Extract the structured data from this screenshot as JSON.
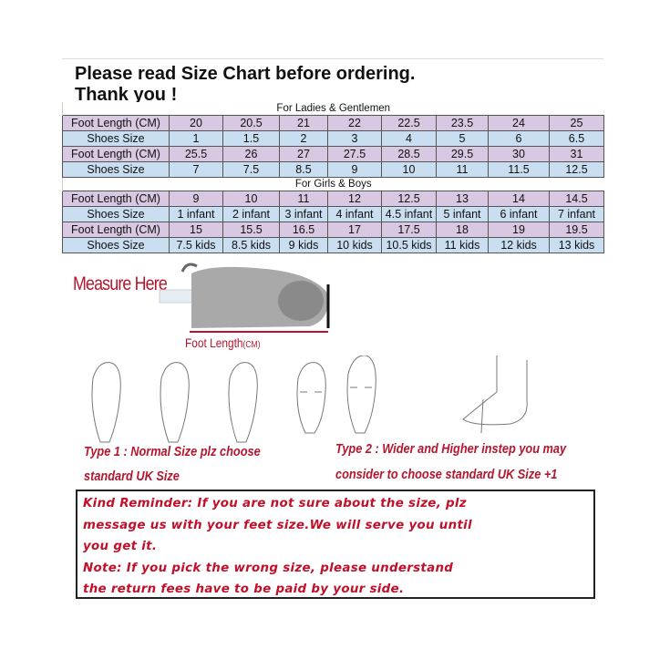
{
  "header": {
    "line1": "Please read Size Chart before ordering.",
    "line2": "Thank you !"
  },
  "adults": {
    "caption": "For Ladies & Gentlemen",
    "rows": [
      {
        "label": "Foot Length (CM)",
        "values": [
          "20",
          "20.5",
          "21",
          "22",
          "22.5",
          "23.5",
          "24",
          "25"
        ]
      },
      {
        "label": "Shoes Size",
        "values": [
          "1",
          "1.5",
          "2",
          "3",
          "4",
          "5",
          "6",
          "6.5"
        ]
      },
      {
        "label": "Foot Length (CM)",
        "values": [
          "25.5",
          "26",
          "27",
          "27.5",
          "28.5",
          "29.5",
          "30",
          "31"
        ]
      },
      {
        "label": "Shoes Size",
        "values": [
          "7",
          "7.5",
          "8.5",
          "9",
          "10",
          "11",
          "11.5",
          "12.5"
        ]
      }
    ]
  },
  "kids": {
    "caption": "For Girls & Boys",
    "rows": [
      {
        "label": "Foot Length (CM)",
        "values": [
          "9",
          "10",
          "11",
          "12",
          "12.5",
          "13",
          "14",
          "14.5"
        ]
      },
      {
        "label": "Shoes Size",
        "values": [
          "1 infant",
          "2 infant",
          "3 infant",
          "4 infant",
          "4.5 infant",
          "5  infant",
          "6  infant",
          "7  infant"
        ]
      },
      {
        "label": "Foot Length (CM)",
        "values": [
          "15",
          "15.5",
          "16.5",
          "17",
          "17.5",
          "18",
          "19",
          "19.5"
        ]
      },
      {
        "label": "Shoes Size",
        "values": [
          "7.5 kids",
          "8.5 kids",
          "9 kids",
          "10 kids",
          "10.5 kids",
          "11 kids",
          "12 kids",
          "13 kids"
        ]
      }
    ]
  },
  "diagram": {
    "measure_label": "Measure Here",
    "foot_length_label": "Foot Length",
    "foot_length_unit": "(CM)"
  },
  "types": {
    "type1_line1": "Type 1 : Normal Size plz choose",
    "type1_line2": "standard UK Size",
    "type2_line1": "Type 2 : Wider and Higher instep you may",
    "type2_line2": "consider to choose standard UK Size +1"
  },
  "reminder": {
    "lines": [
      "Kind Reminder: If you are not sure about the size, plz",
      "message us with your feet size.We will serve you until",
      "you get it.",
      "Note: If you pick the wrong size, please understand",
      "the return fees have to be paid by your side."
    ]
  },
  "colors": {
    "purple_row": "#d9c8e2",
    "blue_row": "#c9def0",
    "red_text": "#c0102a"
  }
}
